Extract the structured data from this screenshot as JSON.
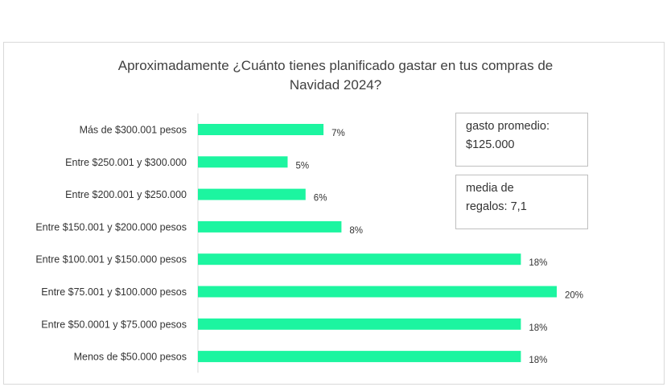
{
  "chart_data": {
    "type": "bar",
    "orientation": "horizontal",
    "title_lines": [
      "Aproximadamente ¿Cuánto tienes planificado gastar   en tus compras de",
      "Navidad 2024?"
    ],
    "categories": [
      "Más de $300.001 pesos",
      "Entre $250.001 y $300.000",
      "Entre $200.001 y $250.000",
      "Entre $150.001 y $200.000 pesos",
      "Entre $100.001 y $150.000 pesos",
      "Entre $75.001 y $100.000 pesos",
      "Entre $50.0001 y $75.000 pesos",
      "Menos de $50.000 pesos"
    ],
    "values": [
      7,
      5,
      6,
      8,
      18,
      20,
      18,
      18
    ],
    "value_labels": [
      "7%",
      "5%",
      "6%",
      "8%",
      "18%",
      "20%",
      "18%",
      "18%"
    ],
    "value_unit": "%",
    "xlim": [
      0,
      20
    ],
    "grid": false,
    "legend": "none",
    "bar_color": "#1cf5a0",
    "axis_color": "#d9d9d9"
  },
  "notes": {
    "avg_line1": "gasto promedio:",
    "avg_line2": "$125.000",
    "gifts_line1": "media de",
    "gifts_line2": "regalos: 7,1"
  }
}
